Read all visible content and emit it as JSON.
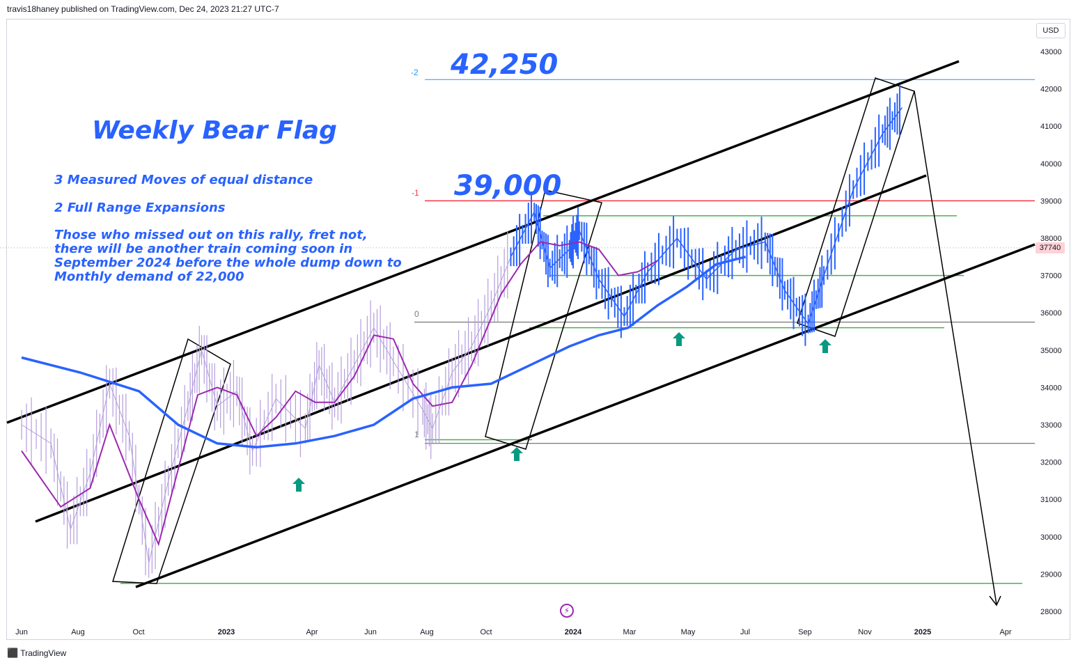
{
  "publisher": "travis18haney published on TradingView.com, Dec 24, 2023 21:27 UTC-7",
  "branding": "TradingView",
  "currency": "USD",
  "current_price": "37740",
  "annotations": {
    "title": "Weekly Bear Flag",
    "line1": "3 Measured Moves of equal distance",
    "line2": "2 Full Range Expansions",
    "paragraph": "Those who missed out on this rally, fret not, there will be another train coming soon in September 2024 before the whole dump down to Monthly demand of 22,000",
    "level_high": "42,250",
    "level_mid": "39,000"
  },
  "fib_labels": {
    "neg2": "-2",
    "neg1": "-1",
    "zero": "0",
    "one": "1"
  },
  "colors": {
    "price_bars": "#b39ddb",
    "price_recent": "#2962ff",
    "ma_fast": "#9c27b0",
    "ma_slow": "#2962ff",
    "channel": "#000000",
    "support": "#4caf50",
    "target_line": "#2196f3",
    "resistance": "#f23645",
    "arrow": "#089981"
  },
  "chart_data": {
    "type": "line",
    "ylim": [
      28000,
      43000
    ],
    "y_ticks": [
      43000,
      42000,
      41000,
      40000,
      39000,
      38000,
      37000,
      36000,
      35000,
      34000,
      33000,
      32000,
      31000,
      30000,
      29000,
      28000
    ],
    "x_ticks": [
      "Jun",
      "Aug",
      "Oct",
      "2023",
      "Apr",
      "Jun",
      "Aug",
      "Oct",
      "2024",
      "Mar",
      "May",
      "Jul",
      "Sep",
      "Nov",
      "2025",
      "Apr"
    ],
    "price": [
      [
        0,
        33000
      ],
      [
        1.5,
        32500
      ],
      [
        2.5,
        30200
      ],
      [
        3.5,
        31700
      ],
      [
        4.5,
        34100
      ],
      [
        5.5,
        32700
      ],
      [
        6.5,
        29300
      ],
      [
        7.5,
        31500
      ],
      [
        8.5,
        33500
      ],
      [
        9.2,
        35000
      ],
      [
        10,
        33500
      ],
      [
        11,
        33900
      ],
      [
        11.8,
        32300
      ],
      [
        13,
        33700
      ],
      [
        14.5,
        32900
      ],
      [
        15.2,
        34600
      ],
      [
        16,
        33600
      ],
      [
        17,
        34600
      ],
      [
        18,
        35600
      ],
      [
        19,
        34700
      ],
      [
        20.5,
        33400
      ],
      [
        21,
        32900
      ],
      [
        22,
        34400
      ],
      [
        23,
        35100
      ],
      [
        24,
        36200
      ],
      [
        25,
        37500
      ],
      [
        26.2,
        38700
      ],
      [
        27,
        37200
      ],
      [
        28,
        37700
      ],
      [
        28.5,
        38200
      ],
      [
        29.5,
        36900
      ],
      [
        30.8,
        35900
      ],
      [
        32,
        37100
      ],
      [
        33.5,
        38000
      ],
      [
        35,
        36900
      ],
      [
        36.5,
        37700
      ],
      [
        38,
        37900
      ],
      [
        39,
        36600
      ],
      [
        40.2,
        35700
      ],
      [
        41,
        37000
      ],
      [
        42.5,
        39300
      ],
      [
        44,
        40800
      ],
      [
        45,
        41500
      ]
    ],
    "ma_fast": [
      [
        0,
        32300
      ],
      [
        2,
        30800
      ],
      [
        3.5,
        31300
      ],
      [
        4.5,
        33000
      ],
      [
        6,
        31000
      ],
      [
        7,
        29800
      ],
      [
        8,
        31800
      ],
      [
        9,
        33800
      ],
      [
        10,
        34000
      ],
      [
        11,
        33800
      ],
      [
        12,
        32700
      ],
      [
        13,
        33200
      ],
      [
        14,
        33900
      ],
      [
        15,
        33600
      ],
      [
        16,
        33600
      ],
      [
        17,
        34300
      ],
      [
        18,
        35400
      ],
      [
        19,
        35300
      ],
      [
        20,
        34100
      ],
      [
        21,
        33500
      ],
      [
        22,
        33600
      ],
      [
        23,
        34600
      ],
      [
        24.5,
        36500
      ],
      [
        25.5,
        37300
      ],
      [
        26.5,
        37900
      ],
      [
        27.5,
        37800
      ],
      [
        28.5,
        37900
      ],
      [
        29.5,
        37700
      ],
      [
        30.5,
        37000
      ],
      [
        31.5,
        37100
      ],
      [
        32.5,
        37400
      ]
    ],
    "ma_slow": [
      [
        0,
        34800
      ],
      [
        3,
        34400
      ],
      [
        6,
        33900
      ],
      [
        8,
        33000
      ],
      [
        10,
        32500
      ],
      [
        12,
        32400
      ],
      [
        14,
        32500
      ],
      [
        16,
        32700
      ],
      [
        18,
        33000
      ],
      [
        20,
        33700
      ],
      [
        22,
        34000
      ],
      [
        24,
        34100
      ],
      [
        26,
        34600
      ],
      [
        28,
        35100
      ],
      [
        29.5,
        35400
      ],
      [
        31,
        35600
      ],
      [
        32.5,
        36200
      ],
      [
        34,
        36700
      ],
      [
        35.5,
        37300
      ],
      [
        37,
        37500
      ]
    ],
    "levels": {
      "target": 42250,
      "resistance": 39000,
      "fib_0": 35750,
      "fib_1": 32500,
      "demand_floor": 28750
    }
  }
}
